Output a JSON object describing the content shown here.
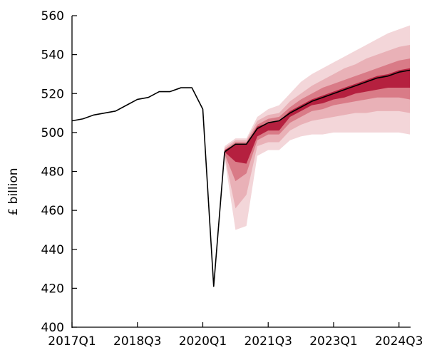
{
  "chart_data": {
    "type": "area",
    "title": "",
    "xlabel": "",
    "ylabel": "£ billion",
    "ylim": [
      400,
      560
    ],
    "yticks": [
      400,
      420,
      440,
      460,
      480,
      500,
      520,
      540,
      560
    ],
    "xlim": [
      "2017Q1",
      "2024Q4"
    ],
    "xticks": [
      "2017Q1",
      "2018Q3",
      "2020Q1",
      "2021Q3",
      "2023Q1",
      "2024Q3"
    ],
    "xtick_labels": [
      "2017Q1",
      "2018Q3",
      "2020Q1",
      "2021Q3",
      "2023Q1",
      "2024Q3"
    ],
    "grid": false,
    "legend": "none",
    "colors": {
      "line": "#000000",
      "band_outer": "#f3d6d9",
      "band_mid2": "#e9b1b7",
      "band_mid1": "#d97b87",
      "band_inner": "#b5203f"
    },
    "outturn": {
      "x": [
        "2017Q1",
        "2017Q2",
        "2017Q3",
        "2017Q4",
        "2018Q1",
        "2018Q2",
        "2018Q3",
        "2018Q4",
        "2019Q1",
        "2019Q2",
        "2019Q3",
        "2019Q4",
        "2020Q1",
        "2020Q2",
        "2020Q3"
      ],
      "values": [
        506,
        507,
        509,
        510,
        511,
        514,
        517,
        518,
        521,
        521,
        523,
        523,
        512,
        421,
        490
      ]
    },
    "central_forecast": {
      "x": [
        "2020Q3",
        "2020Q4",
        "2021Q1",
        "2021Q2",
        "2021Q3",
        "2021Q4",
        "2022Q1",
        "2022Q2",
        "2022Q3",
        "2022Q4",
        "2023Q1",
        "2023Q2",
        "2023Q3",
        "2023Q4",
        "2024Q1",
        "2024Q2",
        "2024Q3",
        "2024Q4"
      ],
      "values": [
        490,
        494,
        494,
        502,
        505,
        506,
        510,
        513,
        516,
        518,
        520,
        522,
        524,
        526,
        528,
        529,
        531,
        532
      ]
    },
    "fan_bands": {
      "x": [
        "2020Q2",
        "2020Q3",
        "2020Q4",
        "2021Q1",
        "2021Q2",
        "2021Q3",
        "2021Q4",
        "2022Q1",
        "2022Q2",
        "2022Q3",
        "2022Q4",
        "2023Q1",
        "2023Q2",
        "2023Q3",
        "2023Q4",
        "2024Q1",
        "2024Q2",
        "2024Q3",
        "2024Q4"
      ],
      "outer": {
        "lower": [
          421,
          487,
          450,
          452,
          488,
          491,
          491,
          496,
          498,
          499,
          499,
          500,
          500,
          500,
          500,
          500,
          500,
          500,
          499
        ],
        "upper": [
          421,
          493,
          497,
          497,
          508,
          512,
          514,
          520,
          526,
          530,
          533,
          536,
          539,
          542,
          545,
          548,
          551,
          553,
          555
        ]
      },
      "mid2": {
        "lower": [
          421,
          488,
          461,
          468,
          493,
          495,
          495,
          501,
          504,
          506,
          507,
          508,
          509,
          510,
          510,
          511,
          511,
          511,
          510
        ],
        "upper": [
          421,
          492,
          496,
          496,
          506,
          509,
          510,
          516,
          520,
          524,
          527,
          530,
          533,
          535,
          538,
          540,
          542,
          544,
          545
        ]
      },
      "mid1": {
        "lower": [
          421,
          489,
          475,
          479,
          496,
          499,
          499,
          505,
          508,
          511,
          512,
          514,
          515,
          516,
          517,
          518,
          518,
          518,
          517
        ],
        "upper": [
          421,
          491,
          495,
          495,
          504,
          507,
          508,
          513,
          517,
          520,
          523,
          525,
          527,
          529,
          531,
          533,
          535,
          537,
          538
        ]
      },
      "inner": {
        "lower": [
          421,
          490,
          485,
          484,
          498,
          501,
          501,
          508,
          511,
          514,
          515,
          517,
          518,
          520,
          521,
          522,
          523,
          523,
          523
        ],
        "upper": [
          421,
          491,
          494,
          494,
          503,
          505,
          506,
          511,
          514,
          517,
          519,
          521,
          523,
          525,
          527,
          529,
          530,
          532,
          533
        ]
      }
    }
  }
}
